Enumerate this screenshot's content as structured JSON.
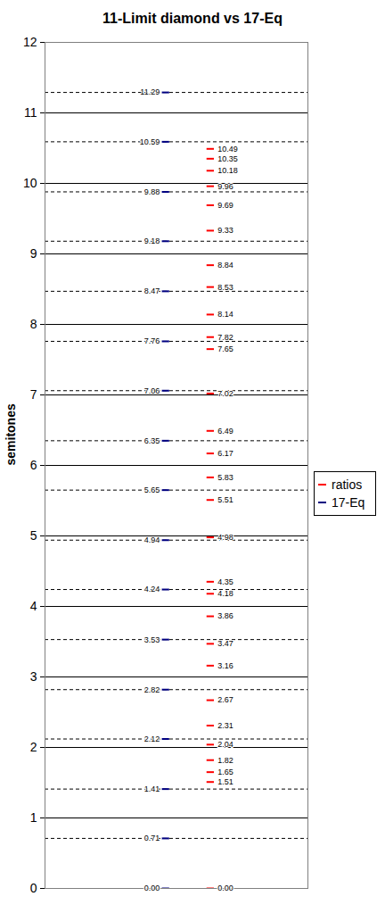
{
  "chart_data": {
    "type": "scatter",
    "title": "11-Limit diamond vs 17-Eq",
    "ylabel": "semitones",
    "ylim": [
      0,
      12
    ],
    "yticks": [
      0,
      1,
      2,
      3,
      4,
      5,
      6,
      7,
      8,
      9,
      10,
      11,
      12
    ],
    "grid": true,
    "legend": "right",
    "data_labels": true,
    "tick_labels": "y",
    "series": [
      {
        "name": "ratios",
        "color": "#ff0000",
        "marker": "dash",
        "values": [
          0,
          1.51,
          1.65,
          1.82,
          2.04,
          2.31,
          2.67,
          3.16,
          3.47,
          3.86,
          4.18,
          4.35,
          4.98,
          5.51,
          5.83,
          6.17,
          6.49,
          7.02,
          7.65,
          7.82,
          8.14,
          8.53,
          8.84,
          9.33,
          9.69,
          9.96,
          10.18,
          10.35,
          10.49
        ],
        "value_labels": [
          "0.00",
          "1.51",
          "1.65",
          "1.82",
          "2.04",
          "2.31",
          "2.67",
          "3.16",
          "3.47",
          "3.86",
          "4.18",
          "4.35",
          "4.98",
          "5.51",
          "5.83",
          "6.17",
          "6.49",
          "7.02",
          "7.65",
          "7.82",
          "8.14",
          "8.53",
          "8.84",
          "9.33",
          "9.69",
          "9.96",
          "10.18",
          "10.35",
          "10.49"
        ]
      },
      {
        "name": "17-Eq",
        "color": "#000080",
        "marker": "dash",
        "line_style": "dashed",
        "values": [
          0,
          0.71,
          1.41,
          2.12,
          2.82,
          3.53,
          4.24,
          4.94,
          5.65,
          6.35,
          7.06,
          7.76,
          8.47,
          9.18,
          9.88,
          10.59,
          11.29
        ],
        "value_labels": [
          "0.00",
          "0.71",
          "1.41",
          "2.12",
          "2.82",
          "3.53",
          "4.24",
          "4.94",
          "5.65",
          "6.35",
          "7.06",
          "7.76",
          "8.47",
          "9.18",
          "9.88",
          "10.59",
          "11.29"
        ]
      }
    ]
  }
}
